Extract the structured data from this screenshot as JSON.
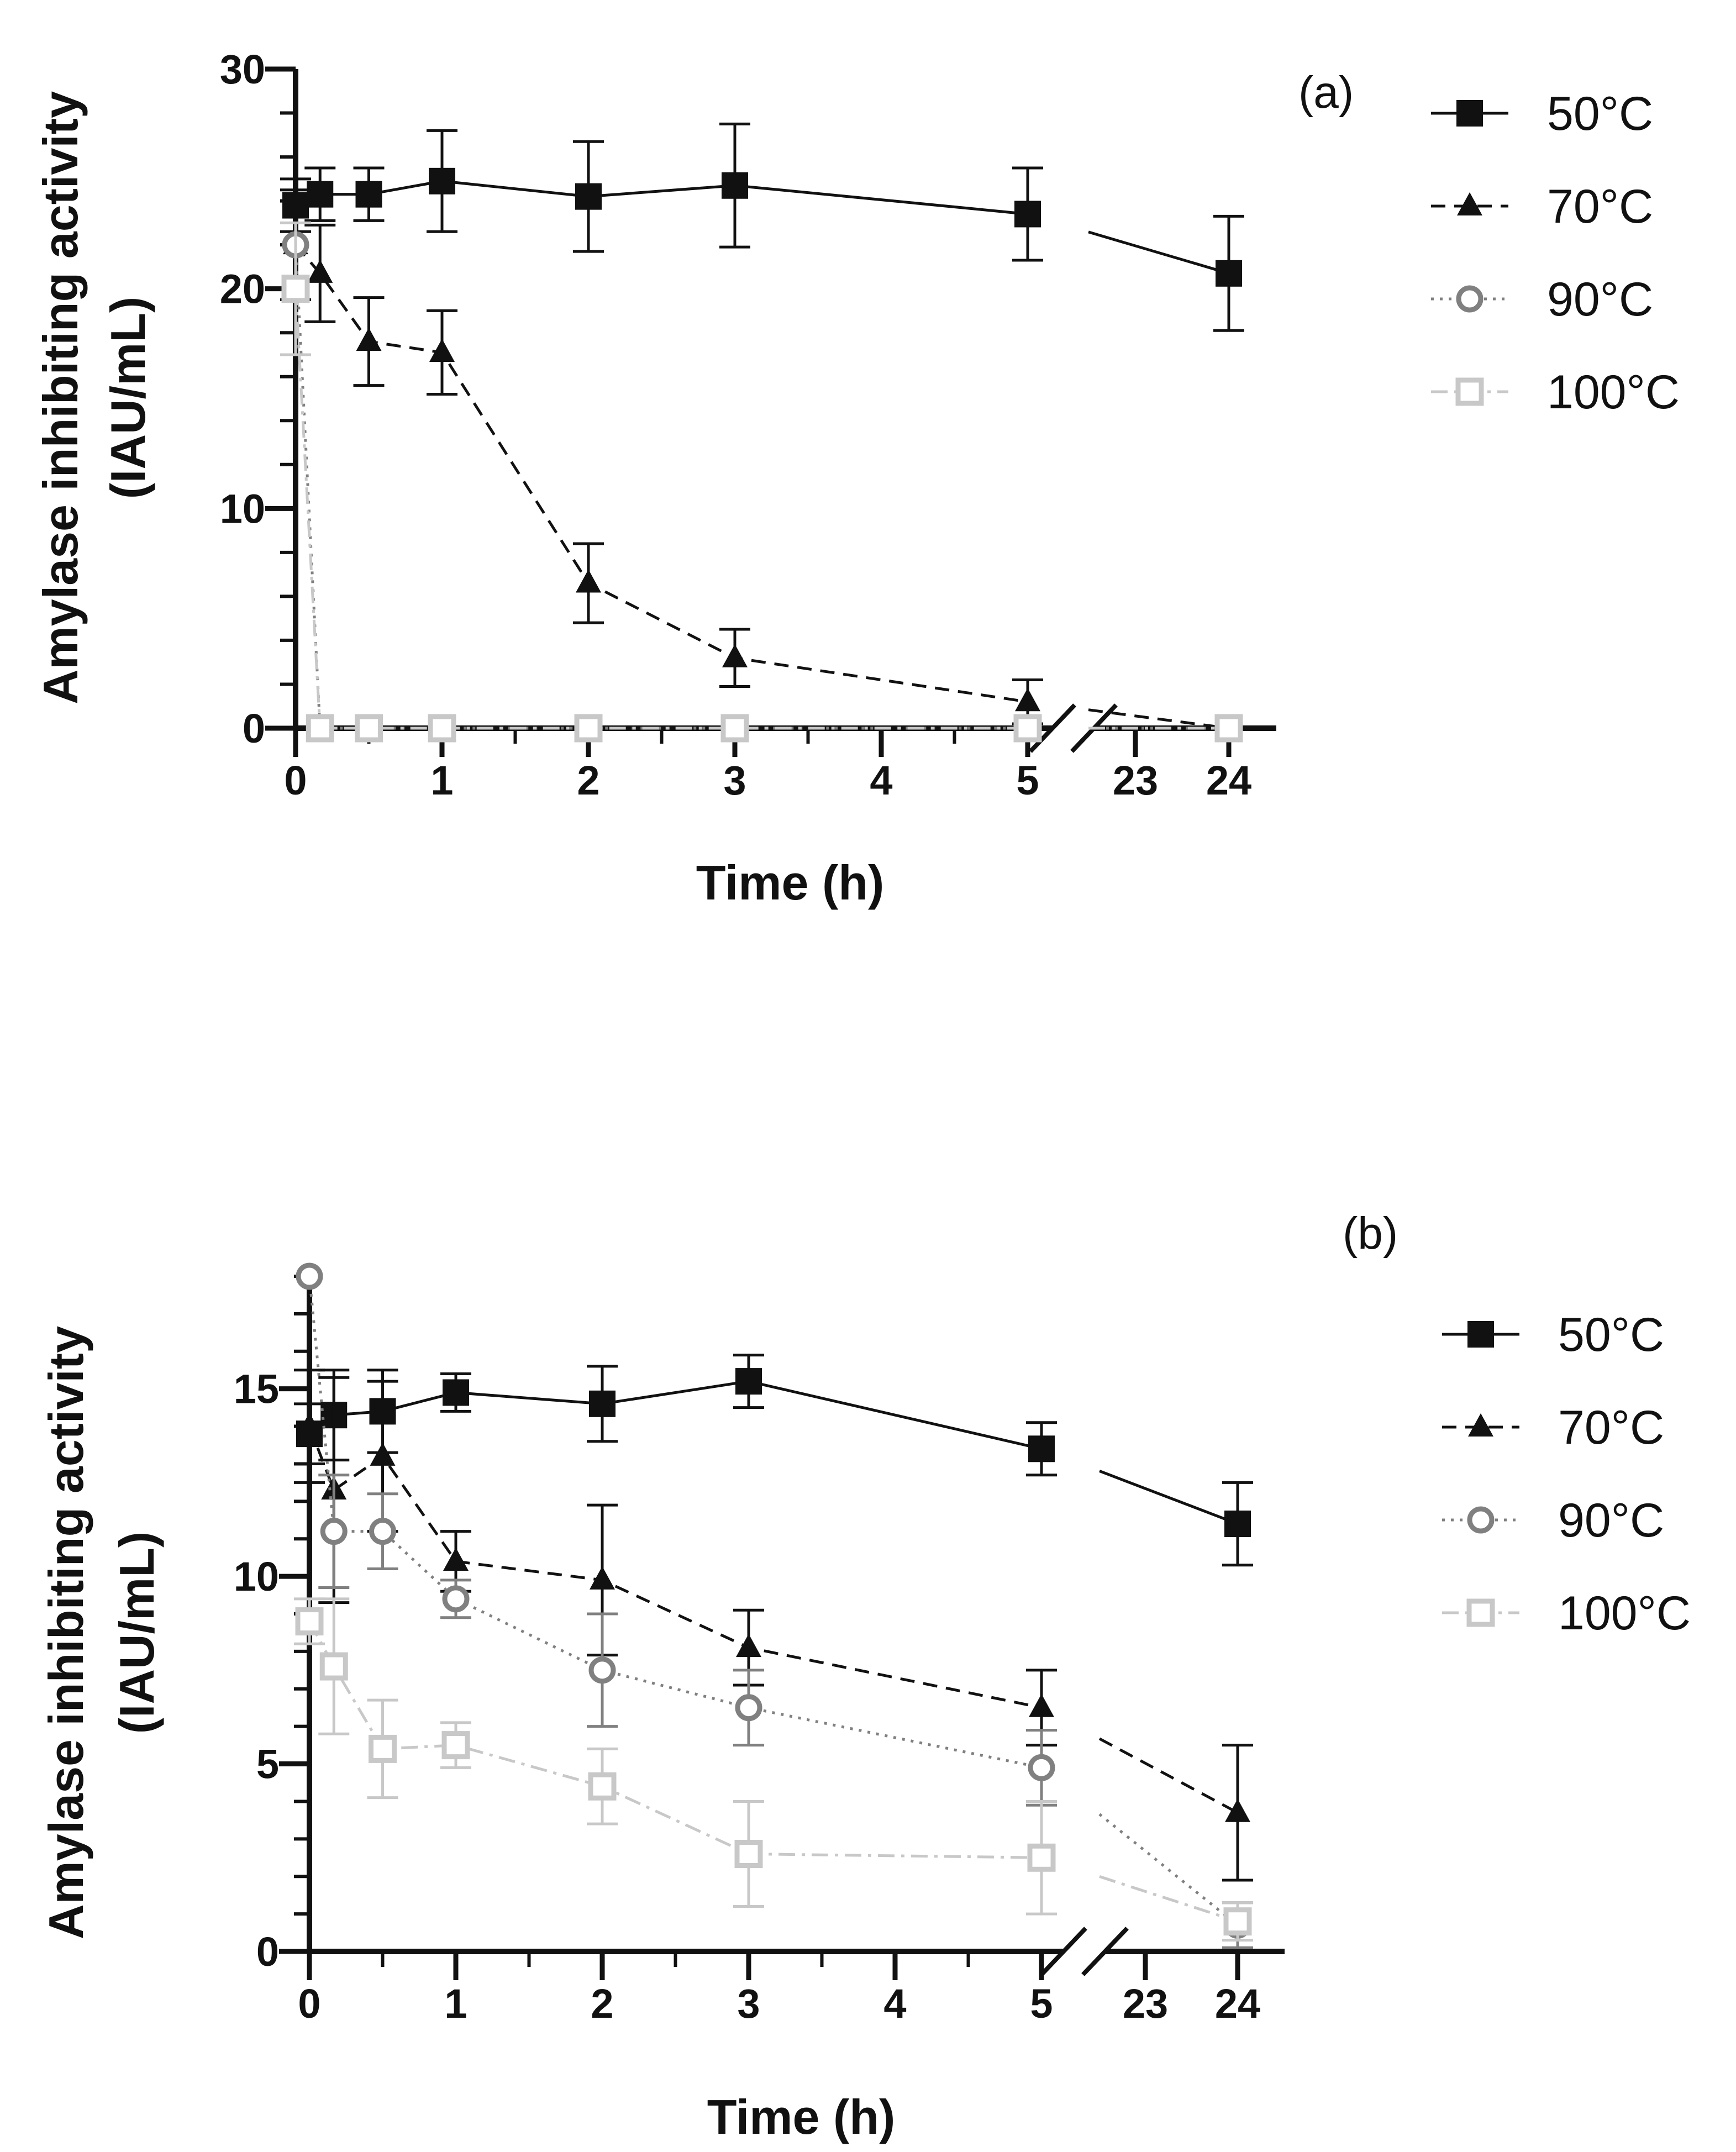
{
  "chart_data": [
    {
      "type": "line",
      "panel_label": "(a)",
      "xlabel": "Time (h)",
      "ylabel_line1": "Amylase inhibiting activity",
      "ylabel_line2": "(IAU/mL)",
      "ylim": [
        0,
        30
      ],
      "yticks": [
        0,
        10,
        20,
        30
      ],
      "xlim": [
        0,
        24
      ],
      "xticks": [
        0,
        1,
        2,
        3,
        4,
        5,
        23,
        24
      ],
      "axis_break": {
        "from": 5,
        "to": 23
      },
      "legend_position": "top-right",
      "series": [
        {
          "name": "50°C",
          "marker": "square-filled",
          "line": "solid",
          "color": "#111111",
          "x": [
            0,
            0.167,
            0.5,
            1,
            2,
            3,
            5,
            24
          ],
          "y": [
            23.8,
            24.3,
            24.3,
            24.9,
            24.2,
            24.7,
            23.4,
            20.7
          ],
          "err": [
            1.2,
            1.2,
            1.2,
            2.3,
            2.5,
            2.8,
            2.1,
            2.6
          ]
        },
        {
          "name": "70°C",
          "marker": "triangle-filled",
          "line": "dashed",
          "color": "#111111",
          "x": [
            0,
            0.167,
            0.5,
            1,
            2,
            3,
            5,
            24
          ],
          "y": [
            22.0,
            20.7,
            17.6,
            17.1,
            6.6,
            3.2,
            1.2,
            0
          ],
          "err": [
            2.5,
            2.2,
            2.0,
            1.9,
            1.8,
            1.3,
            1.0,
            0
          ]
        },
        {
          "name": "90°C",
          "marker": "circle-open",
          "line": "dotted",
          "color": "#808080",
          "x": [
            0,
            0.167,
            0.5,
            1,
            2,
            3,
            5,
            24
          ],
          "y": [
            22.0,
            0,
            0,
            0,
            0,
            0,
            0,
            0
          ],
          "err": [
            0,
            0,
            0,
            0,
            0,
            0,
            0,
            0
          ]
        },
        {
          "name": "100°C",
          "marker": "square-open",
          "line": "dashdot",
          "color": "#c8c8c8",
          "x": [
            0,
            0.167,
            0.5,
            1,
            2,
            3,
            5,
            24
          ],
          "y": [
            20.0,
            0,
            0,
            0,
            0,
            0,
            0,
            0
          ],
          "err": [
            3.0,
            0,
            0,
            0,
            0,
            0,
            0,
            0
          ]
        }
      ]
    },
    {
      "type": "line",
      "panel_label": "(b)",
      "xlabel": "Time (h)",
      "ylabel_line1": "Amylase inhibiting activity",
      "ylabel_line2": "(IAU/mL)",
      "ylim": [
        0,
        18
      ],
      "yticks": [
        0,
        5,
        10,
        15
      ],
      "xlim": [
        0,
        24
      ],
      "xticks": [
        0,
        1,
        2,
        3,
        4,
        5,
        23,
        24
      ],
      "axis_break": {
        "from": 5,
        "to": 23
      },
      "legend_position": "top-right",
      "series": [
        {
          "name": "50°C",
          "marker": "square-filled",
          "line": "solid",
          "color": "#111111",
          "x": [
            0,
            0.167,
            0.5,
            1,
            2,
            3,
            5,
            24
          ],
          "y": [
            13.8,
            14.3,
            14.4,
            14.9,
            14.6,
            15.2,
            13.4,
            11.4
          ],
          "err": [
            0.8,
            1.2,
            1.1,
            0.5,
            1.0,
            0.7,
            0.7,
            1.1
          ]
        },
        {
          "name": "70°C",
          "marker": "triangle-filled",
          "line": "dashed",
          "color": "#111111",
          "x": [
            0,
            0.167,
            0.5,
            1,
            2,
            3,
            5,
            24
          ],
          "y": [
            14.0,
            12.3,
            13.2,
            10.4,
            9.9,
            8.1,
            6.5,
            3.7
          ],
          "err": [
            1.5,
            3.0,
            2.0,
            0.8,
            2.0,
            1.0,
            1.0,
            1.8
          ]
        },
        {
          "name": "90°C",
          "marker": "circle-open",
          "line": "dotted",
          "color": "#808080",
          "x": [
            0,
            0.167,
            0.5,
            1,
            2,
            3,
            5,
            24
          ],
          "y": [
            18.0,
            11.2,
            11.2,
            9.4,
            7.5,
            6.5,
            4.9,
            0.7
          ],
          "err": [
            0,
            1.5,
            1.0,
            0.5,
            1.5,
            1.0,
            1.0,
            0.6
          ]
        },
        {
          "name": "100°C",
          "marker": "square-open",
          "line": "dashdot",
          "color": "#c8c8c8",
          "x": [
            0,
            0.167,
            0.5,
            1,
            2,
            3,
            5,
            24
          ],
          "y": [
            8.8,
            7.6,
            5.4,
            5.5,
            4.4,
            2.6,
            2.5,
            0.8
          ],
          "err": [
            0.6,
            1.8,
            1.3,
            0.6,
            1.0,
            1.4,
            1.5,
            0.5
          ]
        }
      ]
    }
  ]
}
